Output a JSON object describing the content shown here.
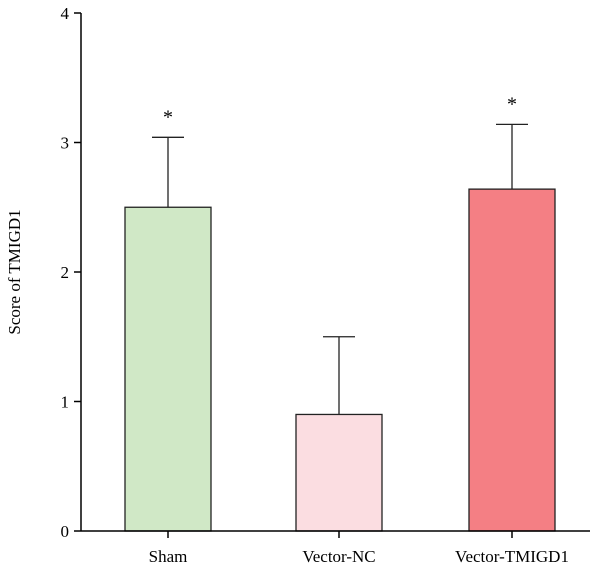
{
  "chart_data": {
    "type": "bar",
    "categories": [
      "Sham",
      "Vector-NC",
      "Vector-TMIGD1"
    ],
    "values": [
      2.5,
      0.9,
      2.64
    ],
    "error_upper": [
      3.04,
      1.5,
      3.14
    ],
    "significance": [
      "*",
      "",
      "*"
    ],
    "colors": [
      "#d0e8c6",
      "#fbdde1",
      "#f47f84"
    ],
    "title": "",
    "xlabel": "",
    "ylabel": "Score of TMIGD1",
    "ylim": [
      0,
      4
    ],
    "yticks": [
      0,
      1,
      2,
      3,
      4
    ],
    "grid": false,
    "legend": false
  }
}
